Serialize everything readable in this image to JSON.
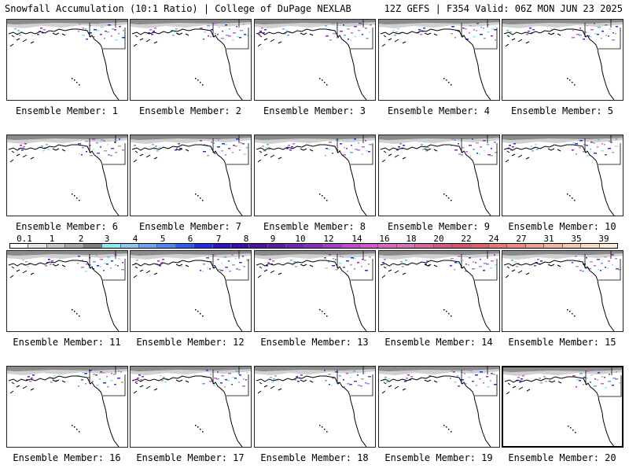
{
  "header": {
    "left": "Snowfall Accumulation (10:1 Ratio) | College of DuPage NEXLAB",
    "right": "12Z GEFS | F354 Valid: 06Z MON JUN 23 2025"
  },
  "legend": {
    "ticks": [
      "0.1",
      "1",
      "2",
      "3",
      "4",
      "5",
      "6",
      "7",
      "8",
      "9",
      "10",
      "12",
      "14",
      "16",
      "18",
      "20",
      "22",
      "24",
      "27",
      "31",
      "35",
      "39"
    ],
    "colors": [
      "#ffffff",
      "#e6e6e6",
      "#c8c8c8",
      "#a6a6a6",
      "#7e7e7e",
      "#8ce8f2",
      "#8cc6f2",
      "#6aa6ee",
      "#4d86ec",
      "#2c5cf0",
      "#1d2ef0",
      "#2a13c8",
      "#3b10a8",
      "#4e139c",
      "#5e1aa6",
      "#7424b0",
      "#8a2cbc",
      "#a43cc6",
      "#bc4ccc",
      "#d25acc",
      "#d668c4",
      "#d474b8",
      "#d4669c",
      "#d45a86",
      "#d65470",
      "#d8646a",
      "#e27a72",
      "#ea8c82",
      "#f0a090",
      "#f4b4a0",
      "#f6c8b0",
      "#f8dcc4",
      "#fbebd8"
    ]
  },
  "panels": [
    {
      "label": "Ensemble Member: 1"
    },
    {
      "label": "Ensemble Member: 2"
    },
    {
      "label": "Ensemble Member: 3"
    },
    {
      "label": "Ensemble Member: 4"
    },
    {
      "label": "Ensemble Member: 5"
    },
    {
      "label": "Ensemble Member: 6"
    },
    {
      "label": "Ensemble Member: 7"
    },
    {
      "label": "Ensemble Member: 8"
    },
    {
      "label": "Ensemble Member: 9"
    },
    {
      "label": "Ensemble Member: 10"
    },
    {
      "label": "Ensemble Member: 11"
    },
    {
      "label": "Ensemble Member: 12"
    },
    {
      "label": "Ensemble Member: 13"
    },
    {
      "label": "Ensemble Member: 14"
    },
    {
      "label": "Ensemble Member: 15"
    },
    {
      "label": "Ensemble Member: 16"
    },
    {
      "label": "Ensemble Member: 17"
    },
    {
      "label": "Ensemble Member: 18"
    },
    {
      "label": "Ensemble Member: 19"
    },
    {
      "label": "Ensemble Member: 20"
    }
  ]
}
